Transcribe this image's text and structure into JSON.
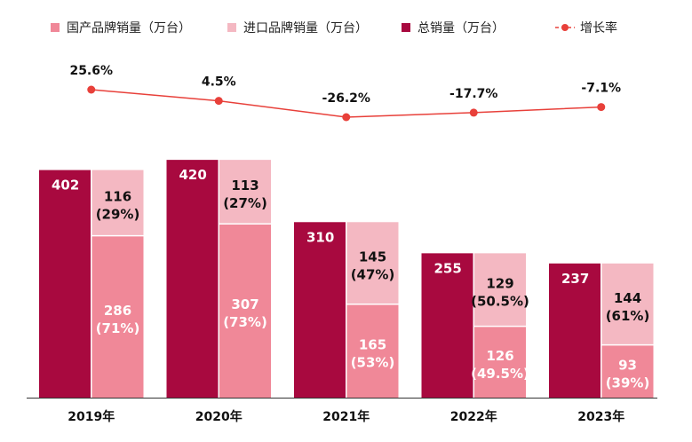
{
  "chart_data": {
    "type": "bar",
    "categories": [
      "2019年",
      "2020年",
      "2021年",
      "2022年",
      "2023年"
    ],
    "series": [
      {
        "name": "国产品牌销量（万台）",
        "values": [
          286,
          307,
          165,
          126,
          93
        ],
        "share_labels": [
          "(71%)",
          "(73%)",
          "(53%)",
          "(49.5%)",
          "(39%)"
        ],
        "color": "#f08898"
      },
      {
        "name": "进口品牌销量（万台）",
        "values": [
          116,
          113,
          145,
          129,
          144
        ],
        "share_labels": [
          "(29%)",
          "(27%)",
          "(47%)",
          "(50.5%)",
          "(61%)"
        ],
        "color": "#f4b8c2"
      },
      {
        "name": "总销量（万台）",
        "values": [
          402,
          420,
          310,
          255,
          237
        ],
        "color": "#a8093f"
      },
      {
        "name": "增长率",
        "type": "line",
        "values": [
          25.6,
          4.5,
          -26.2,
          -17.7,
          -7.1
        ],
        "labels": [
          "25.6%",
          "4.5%",
          "-26.2%",
          "-17.7%",
          "-7.1%"
        ],
        "color": "#e8403a"
      }
    ],
    "legend_position": "top",
    "grid": false
  }
}
